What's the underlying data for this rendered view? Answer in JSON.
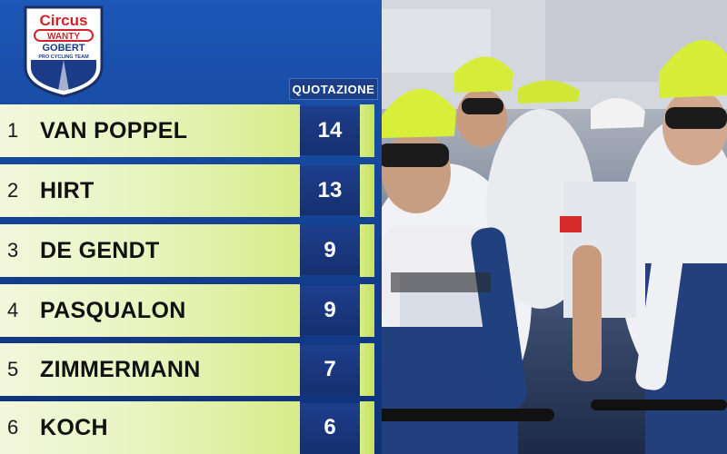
{
  "logo": {
    "line1": "Circus",
    "line2": "WANTY",
    "line3": "GOBERT",
    "line4": "PRO CYCLING TEAM"
  },
  "column_header": "QUOTAZIONE",
  "riders": [
    {
      "pos": "1",
      "name": "VAN POPPEL",
      "value": "14"
    },
    {
      "pos": "2",
      "name": "HIRT",
      "value": "13"
    },
    {
      "pos": "3",
      "name": "DE GENDT",
      "value": "9"
    },
    {
      "pos": "4",
      "name": "PASQUALON",
      "value": "9"
    },
    {
      "pos": "5",
      "name": "ZIMMERMANN",
      "value": "7"
    },
    {
      "pos": "6",
      "name": "KOCH",
      "value": "6"
    }
  ],
  "colors": {
    "panel_blue": "#174aa2",
    "bar_green": "#d7ec8a",
    "value_box": "#1e3e8c",
    "logo_red": "#d2232a"
  }
}
